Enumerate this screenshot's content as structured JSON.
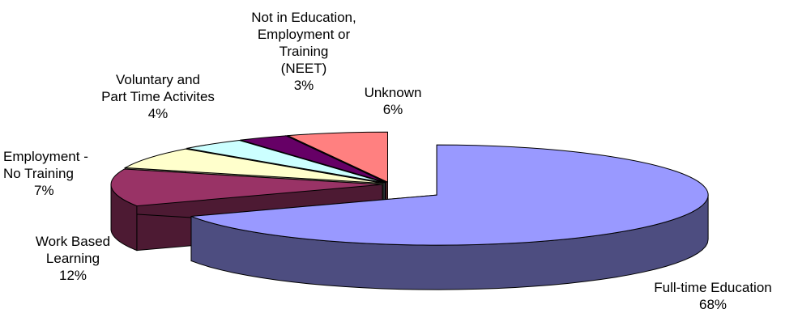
{
  "chart_data": {
    "type": "pie",
    "variant": "3d-exploded",
    "title": "",
    "slices": [
      {
        "label": "Full-time Education",
        "value": 68,
        "value_label": "68%",
        "color": "#9999ff",
        "side_color": "#4d4d80"
      },
      {
        "label": "Work Based Learning",
        "value": 12,
        "value_label": "12%",
        "color": "#993366",
        "side_color": "#4d1a33"
      },
      {
        "label": "Employment - No Training",
        "value": 7,
        "value_label": "7%",
        "color": "#ffffcc",
        "side_color": "#808066"
      },
      {
        "label": "Voluntary and Part Time Activites",
        "value": 4,
        "value_label": "4%",
        "color": "#ccffff",
        "side_color": "#668080"
      },
      {
        "label": "Not in Education, Employment or Training (NEET)",
        "value": 3,
        "value_label": "3%",
        "color": "#660066",
        "side_color": "#330033"
      },
      {
        "label": "Unknown",
        "value": 6,
        "value_label": "6%",
        "color": "#ff8080",
        "side_color": "#804040"
      }
    ]
  },
  "labels": {
    "full_time": {
      "line1": "Full-time Education",
      "pct": "68%"
    },
    "wbl": {
      "line1": "Work Based",
      "line2": "Learning",
      "pct": "12%"
    },
    "emp": {
      "line1": "Employment -",
      "line2": "No Training",
      "pct": "7%"
    },
    "vol": {
      "line1": "Voluntary and",
      "line2": "Part Time Activites",
      "pct": "4%"
    },
    "neet": {
      "line1": "Not in Education,",
      "line2": "Employment or",
      "line3": "Training",
      "line4": "(NEET)",
      "pct": "3%"
    },
    "unknown": {
      "line1": "Unknown",
      "pct": "6%"
    }
  }
}
